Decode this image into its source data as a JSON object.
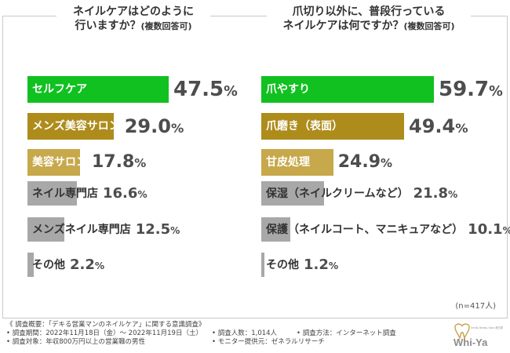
{
  "chart_data": [
    {
      "type": "bar",
      "orientation": "horizontal",
      "title": "ネイルケアはどのように行いますか？",
      "title_line1": "ネイルケアはどのように",
      "title_line2": "行いますか？",
      "subtitle": "(複数回答可)",
      "unit": "%",
      "categories": [
        "セルフケア",
        "メンズ美容サロン",
        "美容サロン",
        "ネイル専門店",
        "メンズネイル専門店",
        "その他"
      ],
      "values": [
        47.5,
        29.0,
        17.8,
        16.6,
        12.5,
        2.2
      ],
      "value_labels": [
        "47.5",
        "29.0",
        "17.8",
        "16.6",
        "12.5",
        "2.2"
      ],
      "colors": [
        "#10c120",
        "#ad8c1c",
        "#c7a84a",
        "#a8a8a8",
        "#a8a8a8",
        "#a8a8a8"
      ]
    },
    {
      "type": "bar",
      "orientation": "horizontal",
      "title": "爪切り以外に、普段行っているネイルケアは何ですか？",
      "title_line1": "爪切り以外に、普段行っている",
      "title_line2": "ネイルケアは何ですか？",
      "subtitle": "(複数回答可)",
      "unit": "%",
      "categories": [
        "爪やすり",
        "爪磨き（表面）",
        "甘皮処理",
        "保湿（ネイルクリームなど）",
        "保護（ネイルコート、マニキュアなど）",
        "その他"
      ],
      "values": [
        59.7,
        49.4,
        24.9,
        21.8,
        10.1,
        1.2
      ],
      "value_labels": [
        "59.7",
        "49.4",
        "24.9",
        "21.8",
        "10.1",
        "1.2"
      ],
      "colors": [
        "#10c120",
        "#ad8c1c",
        "#c7a84a",
        "#a8a8a8",
        "#a8a8a8",
        "#a8a8a8"
      ]
    }
  ],
  "sample_note": "(n=417人)",
  "footer": {
    "heading": "《 調査概要：「デキる営業マンのネイルケア」に関する意識調査》",
    "period": "• 調査期間：2022年11月18日（金）～ 2022年11月19日（土）",
    "count": "• 調査人数：1,014人",
    "method": "• 調査方法：インターネット調査",
    "target": "• 調査対象：年収800万円以上の営業職の男性",
    "provider": "• モニター提供元：ゼネラルリサーチ"
  },
  "logo": {
    "text": "Whi-Ya",
    "tagline": "Dental, Beauty, Salon 美白屋",
    "accent": "#c9a24a"
  }
}
